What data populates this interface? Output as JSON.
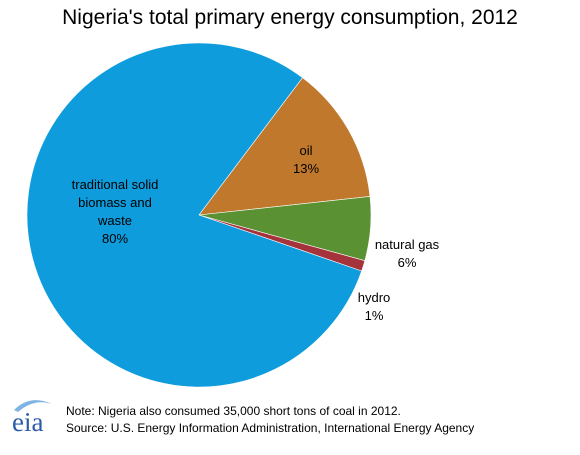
{
  "chart_data": {
    "type": "pie",
    "title": "Nigeria's total primary energy consumption, 2012",
    "slices": [
      {
        "label_lines": [
          "oil",
          "13%"
        ],
        "value": 13,
        "color": "#C0782D"
      },
      {
        "label_lines": [
          "natural gas",
          "6%"
        ],
        "value": 6,
        "color": "#5A9132"
      },
      {
        "label_lines": [
          "hydro",
          "1%"
        ],
        "value": 1,
        "color": "#A5333C"
      },
      {
        "label_lines": [
          "traditional solid",
          "biomass and",
          "waste",
          "80%"
        ],
        "value": 80,
        "color": "#0E9CDC"
      }
    ]
  },
  "footer": {
    "logo_text": "eia",
    "note": "Note:  Nigeria also consumed 35,000 short tons of coal in 2012.",
    "source": "Source: U.S. Energy Information Administration, International Energy Agency"
  },
  "colors": {
    "logo_blue": "#2B5BA8",
    "logo_swoosh": "#7FB4E3"
  }
}
